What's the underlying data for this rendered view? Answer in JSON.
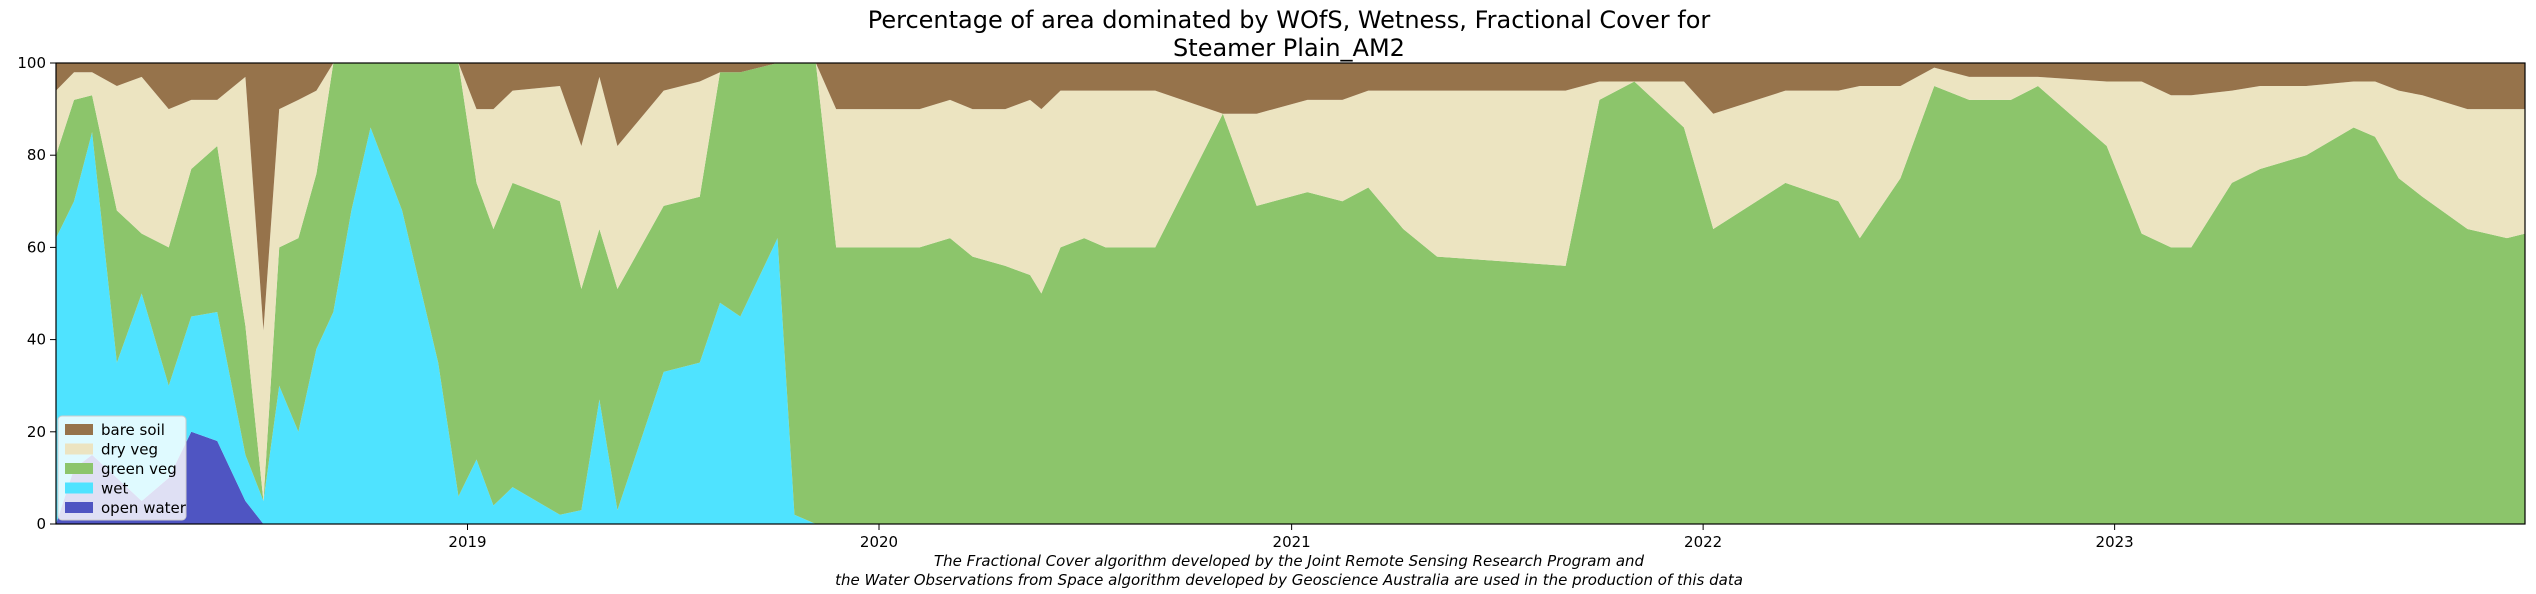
{
  "chart_data": {
    "type": "area",
    "stacked": true,
    "title_lines": [
      "Percentage of area dominated by WOfS, Wetness, Fractional Cover for",
      "Steamer Plain_AM2"
    ],
    "caption_lines": [
      "The Fractional Cover algorithm developed by the Joint Remote Sensing Research Program and",
      "the Water Observations from Space algorithm developed by Geoscience Australia are used in the production of this data"
    ],
    "xlabel": "",
    "ylabel": "",
    "xlim": [
      "2018-01-01",
      "2023-12-31"
    ],
    "ylim": [
      0,
      100
    ],
    "x_ticks": [
      {
        "date": "2019-01-01",
        "label": "2019"
      },
      {
        "date": "2020-01-01",
        "label": "2020"
      },
      {
        "date": "2021-01-01",
        "label": "2021"
      },
      {
        "date": "2022-01-01",
        "label": "2022"
      },
      {
        "date": "2023-01-01",
        "label": "2023"
      }
    ],
    "y_ticks": [
      0,
      20,
      40,
      60,
      80,
      100
    ],
    "grid": false,
    "legend_position": "lower-left",
    "colors": {
      "open water": "#4f55c2",
      "wet": "#4fe3ff",
      "green veg": "#8cc56b",
      "dry veg": "#ece4c1",
      "bare soil": "#96734b"
    },
    "legend": [
      "bare soil",
      "dry veg",
      "green veg",
      "wet",
      "open water"
    ],
    "dates": [
      "2018-01-01",
      "2018-01-17",
      "2018-02-02",
      "2018-02-24",
      "2018-03-18",
      "2018-04-11",
      "2018-05-01",
      "2018-05-24",
      "2018-06-18",
      "2018-07-04",
      "2018-07-18",
      "2018-08-04",
      "2018-08-20",
      "2018-09-04",
      "2018-09-20",
      "2018-10-07",
      "2018-11-04",
      "2018-12-06",
      "2018-12-24",
      "2019-01-09",
      "2019-01-24",
      "2019-02-10",
      "2019-03-24",
      "2019-04-12",
      "2019-04-28",
      "2019-05-14",
      "2019-06-24",
      "2019-07-26",
      "2019-08-13",
      "2019-08-31",
      "2019-10-03",
      "2019-10-18",
      "2019-11-06",
      "2019-11-24",
      "2020-02-06",
      "2020-03-04",
      "2020-03-24",
      "2020-04-22",
      "2020-05-14",
      "2020-05-24",
      "2020-06-10",
      "2020-07-01",
      "2020-07-20",
      "2020-09-02",
      "2020-11-01",
      "2020-12-01",
      "2021-01-15",
      "2021-02-15",
      "2021-03-10",
      "2021-04-10",
      "2021-05-10",
      "2021-09-01",
      "2021-10-01",
      "2021-11-01",
      "2021-12-15",
      "2022-01-10",
      "2022-03-15",
      "2022-05-01",
      "2022-05-20",
      "2022-06-25",
      "2022-07-25",
      "2022-08-25",
      "2022-10-01",
      "2022-10-25",
      "2022-12-25",
      "2023-01-25",
      "2023-02-20",
      "2023-03-10",
      "2023-04-15",
      "2023-05-10",
      "2023-06-20",
      "2023-08-01",
      "2023-08-20",
      "2023-09-10",
      "2023-10-01",
      "2023-11-10",
      "2023-12-15",
      "2023-12-31"
    ],
    "series": [
      {
        "name": "open water",
        "values": [
          0,
          12,
          15,
          10,
          5,
          10,
          20,
          18,
          5,
          0,
          0,
          0,
          0,
          0,
          0,
          0,
          0,
          0,
          0,
          0,
          0,
          0,
          0,
          0,
          0,
          0,
          0,
          0,
          0,
          0,
          0,
          0,
          0,
          0,
          0,
          0,
          0,
          0,
          0,
          0,
          0,
          0,
          0,
          0,
          0,
          0,
          0,
          0,
          0,
          0,
          0,
          0,
          0,
          0,
          0,
          0,
          0,
          0,
          0,
          0,
          0,
          0,
          0,
          0,
          0,
          0,
          0,
          0,
          0,
          0,
          0,
          0,
          0,
          0,
          0,
          0,
          0,
          0
        ]
      },
      {
        "name": "wet",
        "values": [
          62,
          58,
          70,
          25,
          45,
          20,
          25,
          28,
          10,
          5,
          30,
          20,
          38,
          46,
          68,
          86,
          68,
          35,
          6,
          14,
          4,
          8,
          2,
          3,
          27,
          3,
          33,
          35,
          48,
          45,
          62,
          2,
          0,
          0,
          0,
          0,
          0,
          0,
          0,
          0,
          0,
          0,
          0,
          0,
          0,
          0,
          0,
          0,
          0,
          0,
          0,
          0,
          0,
          0,
          0,
          0,
          0,
          0,
          0,
          0,
          0,
          0,
          0,
          0,
          0,
          0,
          0,
          0,
          0,
          0,
          0,
          0,
          0,
          0,
          0,
          0,
          0,
          0
        ]
      },
      {
        "name": "green veg",
        "values": [
          18,
          22,
          8,
          33,
          13,
          30,
          32,
          36,
          28,
          0,
          30,
          42,
          38,
          54,
          32,
          14,
          32,
          65,
          94,
          60,
          60,
          66,
          68,
          48,
          37,
          48,
          36,
          36,
          50,
          53,
          38,
          98,
          100,
          60,
          60,
          62,
          58,
          56,
          54,
          50,
          60,
          62,
          60,
          60,
          89,
          69,
          72,
          70,
          73,
          64,
          58,
          56,
          92,
          96,
          86,
          64,
          74,
          70,
          62,
          75,
          95,
          92,
          92,
          95,
          82,
          63,
          60,
          60,
          74,
          77,
          80,
          86,
          84,
          75,
          71,
          64,
          62,
          63
        ]
      },
      {
        "name": "dry veg",
        "values": [
          14,
          6,
          5,
          27,
          34,
          30,
          15,
          10,
          54,
          37,
          30,
          30,
          18,
          0,
          0,
          0,
          0,
          0,
          0,
          16,
          26,
          20,
          25,
          31,
          33,
          31,
          25,
          25,
          0,
          0,
          0,
          0,
          0,
          30,
          30,
          30,
          32,
          34,
          38,
          40,
          34,
          32,
          34,
          34,
          0,
          20,
          20,
          22,
          21,
          30,
          36,
          38,
          4,
          0,
          10,
          25,
          20,
          24,
          33,
          20,
          4,
          5,
          5,
          2,
          14,
          33,
          33,
          33,
          20,
          18,
          15,
          10,
          12,
          19,
          22,
          26,
          28,
          27
        ]
      },
      {
        "name": "bare soil",
        "values": [
          6,
          2,
          2,
          5,
          3,
          10,
          8,
          8,
          3,
          58,
          10,
          8,
          6,
          0,
          0,
          0,
          0,
          0,
          0,
          10,
          10,
          6,
          5,
          18,
          3,
          18,
          6,
          4,
          2,
          2,
          0,
          0,
          0,
          10,
          10,
          8,
          10,
          10,
          8,
          10,
          6,
          6,
          6,
          6,
          11,
          11,
          8,
          8,
          6,
          6,
          6,
          6,
          4,
          4,
          4,
          11,
          6,
          6,
          5,
          5,
          1,
          3,
          3,
          3,
          4,
          4,
          7,
          7,
          6,
          5,
          5,
          4,
          4,
          6,
          7,
          10,
          10,
          10
        ]
      }
    ]
  }
}
